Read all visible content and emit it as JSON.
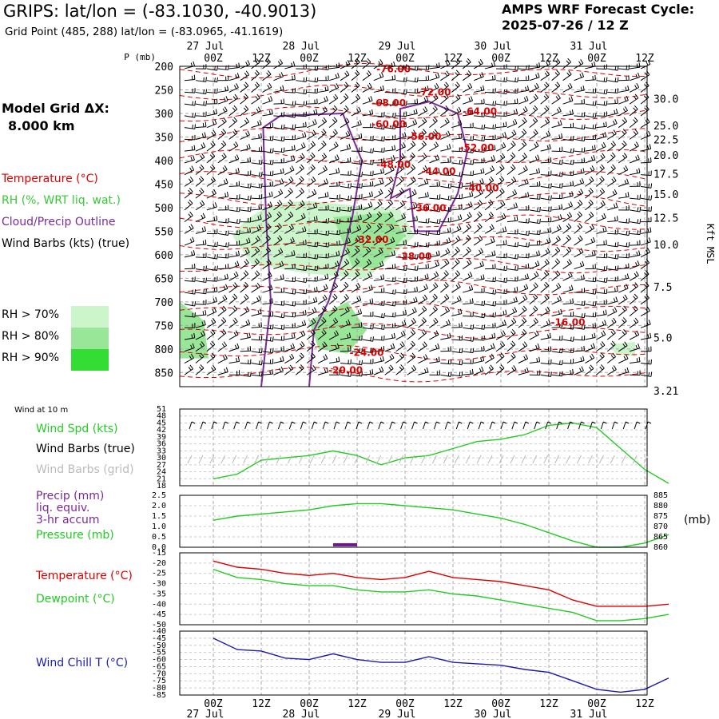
{
  "header": {
    "title": "GRIPS:  lat/lon = (-83.1030, -40.9013)",
    "subtitle": "Grid Point (485, 288) lat/lon = (-83.0965, -41.1619)",
    "forecast_line1": "AMPS WRF Forecast Cycle:",
    "forecast_line2": "2025-07-26 / 12  Z"
  },
  "model_grid": {
    "line1": "Model Grid ΔX:",
    "line2": "8.000 km"
  },
  "legend": {
    "temperature": "Temperature (°C)",
    "rh": "RH (%, WRT liq. wat.)",
    "cloud": "Cloud/Precip Outline",
    "wind": "Wind Barbs (kts) (true)",
    "rh_levels": [
      {
        "label": "RH > 70%",
        "color": "#ccf5cc"
      },
      {
        "label": "RH > 80%",
        "color": "#99e699"
      },
      {
        "label": "RH > 90%",
        "color": "#33dd33"
      }
    ]
  },
  "colors": {
    "temperature": "#dd0000",
    "rh": "#33cc33",
    "cloud": "#7a2a9a",
    "dewpoint": "#22cc22",
    "windchill": "#1a1ab0",
    "grid": "#aaaaaa"
  },
  "chart_data": [
    {
      "type": "heatmap",
      "name_note": "",
      "time_ticks": [
        "00Z",
        "12Z",
        "00Z",
        "12Z",
        "00Z",
        "12Z",
        "00Z",
        "12Z",
        "00Z",
        "12Z"
      ],
      "date_labels": [
        "27 Jul",
        "28 Jul",
        "29 Jul",
        "30 Jul",
        "31 Jul"
      ],
      "p_unit": "P (mb)",
      "pressure_ticks": [
        200,
        250,
        300,
        350,
        400,
        450,
        500,
        550,
        600,
        650,
        700,
        750,
        800,
        850
      ],
      "right_axis_label": "Kft MSL",
      "height_ticks": [
        "30.0",
        "25.0",
        "22.5",
        "20.0",
        "17.5",
        "15.0",
        "12.5",
        "10.0",
        "7.5",
        "5.0",
        "3.21"
      ],
      "height_tick_pressures": [
        270,
        327,
        357,
        390,
        430,
        473,
        523,
        580,
        670,
        777,
        890
      ],
      "temperature_isotherm_labels": [
        {
          "label": "-76.00",
          "t": 1.88,
          "p": 213
        },
        {
          "label": "-72.00",
          "t": 2.3,
          "p": 262
        },
        {
          "label": "-68.00",
          "t": 1.83,
          "p": 285
        },
        {
          "label": "-64.00",
          "t": 2.78,
          "p": 303
        },
        {
          "label": "-60.00",
          "t": 1.83,
          "p": 330
        },
        {
          "label": "-56.00",
          "t": 2.2,
          "p": 356
        },
        {
          "label": "-52.00",
          "t": 2.75,
          "p": 380
        },
        {
          "label": "-48.00",
          "t": 1.88,
          "p": 415
        },
        {
          "label": "-44.00",
          "t": 2.35,
          "p": 430
        },
        {
          "label": "-40.00",
          "t": 2.8,
          "p": 465
        },
        {
          "label": "-36.00",
          "t": 2.25,
          "p": 508
        },
        {
          "label": "-32.00",
          "t": 1.65,
          "p": 575
        },
        {
          "label": "-28.00",
          "t": 2.1,
          "p": 610
        },
        {
          "label": "-24.00",
          "t": 1.6,
          "p": 815
        },
        {
          "label": "-20.00",
          "t": 1.38,
          "p": 852
        },
        {
          "label": "-16.00",
          "t": 3.7,
          "p": 750
        }
      ]
    },
    {
      "type": "line",
      "title": "Wind at 10 m",
      "series": [
        {
          "name": "Wind Spd (kts)",
          "color": "#22cc22",
          "x": [
            0,
            0.25,
            0.5,
            0.75,
            1,
            1.25,
            1.5,
            1.75,
            2,
            2.25,
            2.5,
            2.75,
            3,
            3.25,
            3.5,
            3.75,
            4,
            4.25,
            4.5,
            4.75
          ],
          "values": [
            21,
            23,
            29,
            30,
            31,
            33,
            31,
            27,
            30,
            31,
            34,
            37,
            38,
            40,
            44,
            45,
            43,
            34,
            25,
            19
          ]
        }
      ],
      "labels": [
        "Wind Spd (kts)",
        "Wind Barbs (true)",
        "Wind Barbs (grid)"
      ],
      "label_colors": [
        "#22cc22",
        "#000000",
        "#bbbbbb"
      ],
      "ylim": [
        18,
        51
      ],
      "yticks": [
        18,
        21,
        24,
        27,
        30,
        33,
        36,
        39,
        42,
        45,
        48,
        51
      ]
    },
    {
      "type": "line",
      "labels": [
        "Precip (mm)",
        "liq. equiv.",
        "3-hr accum",
        "Pressure (mb)"
      ],
      "label_colors": [
        "#7a2a9a",
        "#7a2a9a",
        "#7a2a9a",
        "#22cc22"
      ],
      "left_ylim": [
        0,
        2.5
      ],
      "left_yticks": [
        "0.0",
        "0.5",
        "1.0",
        "1.5",
        "2.0",
        "2.5"
      ],
      "right_ylim": [
        860,
        885
      ],
      "right_yticks": [
        "860",
        "865",
        "870",
        "875",
        "880",
        "885"
      ],
      "right_unit": "(mb)",
      "series": [
        {
          "name": "Pressure",
          "color": "#22cc22",
          "axis": "right",
          "x": [
            0,
            0.25,
            0.5,
            0.75,
            1,
            1.25,
            1.5,
            1.75,
            2,
            2.25,
            2.5,
            2.75,
            3,
            3.25,
            3.5,
            3.75,
            4,
            4.25,
            4.5,
            4.75
          ],
          "values": [
            873,
            875,
            876,
            877,
            878,
            880,
            881,
            881,
            880,
            879,
            878,
            876,
            874,
            871,
            867,
            863,
            860,
            860,
            862,
            866
          ]
        },
        {
          "name": "Precip",
          "color": "#6a1a8a",
          "axis": "left",
          "x": [
            1.25,
            1.5
          ],
          "values": [
            0.08,
            0.08
          ]
        }
      ]
    },
    {
      "type": "line",
      "labels": [
        "Temperature (°C)",
        "Dewpoint (°C)"
      ],
      "label_colors": [
        "#dd0000",
        "#22cc22"
      ],
      "ylim": [
        -50,
        -15
      ],
      "yticks": [
        "-15",
        "-20",
        "-25",
        "-30",
        "-35",
        "-40",
        "-45",
        "-50"
      ],
      "series": [
        {
          "name": "Temperature",
          "color": "#dd0000",
          "x": [
            0,
            0.25,
            0.5,
            0.75,
            1,
            1.25,
            1.5,
            1.75,
            2,
            2.25,
            2.5,
            2.75,
            3,
            3.25,
            3.5,
            3.75,
            4,
            4.25,
            4.5,
            4.75
          ],
          "values": [
            -19,
            -22,
            -23,
            -25,
            -26,
            -25,
            -27,
            -28,
            -27,
            -24,
            -27,
            -28,
            -29,
            -31,
            -33,
            -38,
            -41,
            -41,
            -41,
            -40
          ]
        },
        {
          "name": "Dewpoint",
          "color": "#22cc22",
          "x": [
            0,
            0.25,
            0.5,
            0.75,
            1,
            1.25,
            1.5,
            1.75,
            2,
            2.25,
            2.5,
            2.75,
            3,
            3.25,
            3.5,
            3.75,
            4,
            4.25,
            4.5,
            4.75
          ],
          "values": [
            -23,
            -27,
            -28,
            -30,
            -31,
            -31,
            -33,
            -34,
            -34,
            -33,
            -35,
            -36,
            -38,
            -40,
            -42,
            -44,
            -48,
            -48,
            -47,
            -45
          ]
        }
      ]
    },
    {
      "type": "line",
      "labels": [
        "Wind Chill T (°C)"
      ],
      "label_colors": [
        "#1a1ab0"
      ],
      "ylim": [
        -85,
        -40
      ],
      "yticks": [
        "-40",
        "-45",
        "-50",
        "-55",
        "-60",
        "-65",
        "-70",
        "-75",
        "-80",
        "-85"
      ],
      "series": [
        {
          "name": "Wind Chill",
          "color": "#1a1ab0",
          "x": [
            0,
            0.25,
            0.5,
            0.75,
            1,
            1.25,
            1.5,
            1.75,
            2,
            2.25,
            2.5,
            2.75,
            3,
            3.25,
            3.5,
            3.75,
            4,
            4.25,
            4.5,
            4.75
          ],
          "values": [
            -45,
            -53,
            -54,
            -59,
            -60,
            -56,
            -60,
            -62,
            -62,
            -58,
            -62,
            -63,
            -64,
            -67,
            -69,
            -75,
            -81,
            -83,
            -81,
            -73
          ]
        }
      ]
    }
  ]
}
